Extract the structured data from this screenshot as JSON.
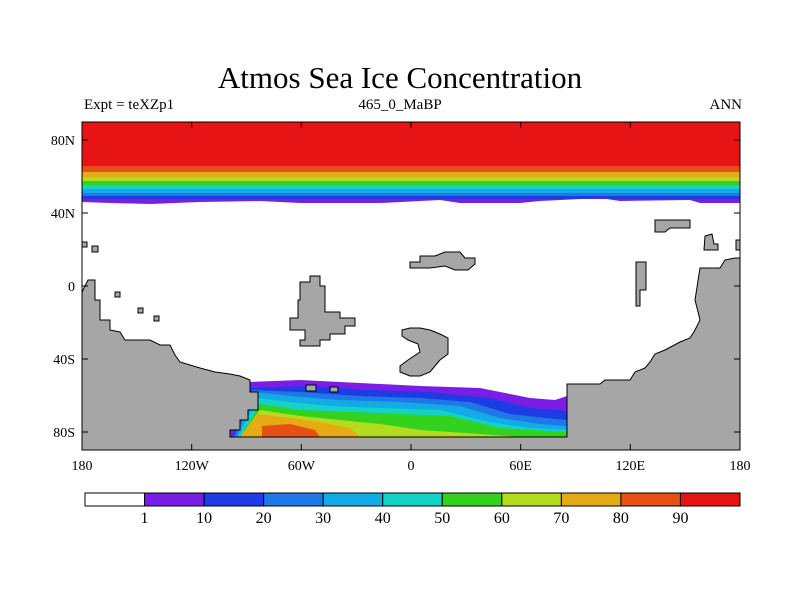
{
  "title": "Atmos Sea Ice Concentration",
  "subtitle_left": "Expt = teXZp1",
  "subtitle_center": "465_0_MaBP",
  "subtitle_right": "ANN",
  "map": {
    "x_ticks": [
      "180",
      "120W",
      "60W",
      "0",
      "60E",
      "120E",
      "180"
    ],
    "y_ticks": [
      "80N",
      "40N",
      "0",
      "40S",
      "80S"
    ],
    "land_color": "#a6a6a6",
    "ocean_color": "#ffffff"
  },
  "colorbar": {
    "labels": [
      "1",
      "10",
      "20",
      "30",
      "40",
      "50",
      "60",
      "70",
      "80",
      "90"
    ],
    "colors": [
      "#ffffff",
      "#7a1ee6",
      "#1e3ce6",
      "#1e78e6",
      "#14aae6",
      "#14d2c8",
      "#32d21e",
      "#b4dc1e",
      "#e6aa14",
      "#e65014",
      "#e61414"
    ]
  }
}
